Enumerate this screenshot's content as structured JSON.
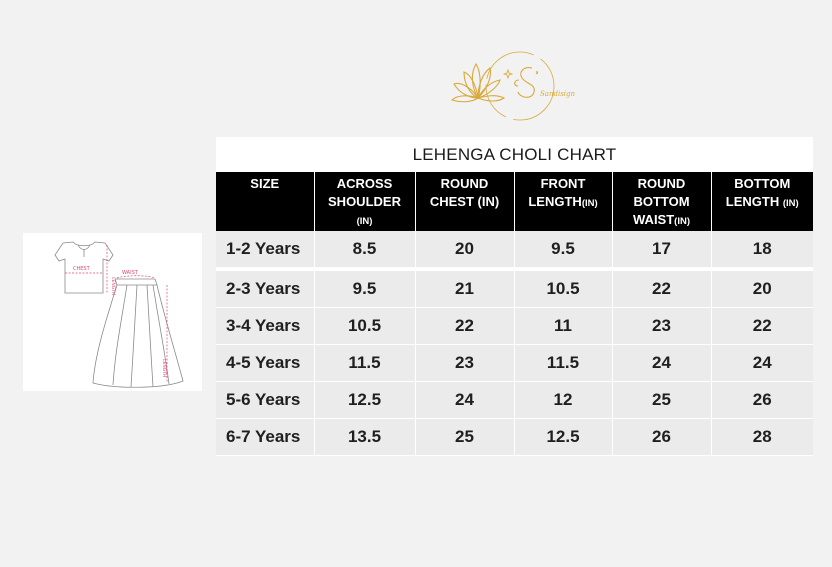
{
  "brand": {
    "logo_text": "Sandisign"
  },
  "diagram": {
    "chest_label": "CHEST",
    "length_label": "LENGTH",
    "waist_label": "WAIST",
    "bottom_length_label": "LENGTH"
  },
  "chart": {
    "title": "LEHENGA CHOLI CHART",
    "columns": [
      {
        "lines": [
          "SIZE"
        ],
        "unit": ""
      },
      {
        "lines": [
          "ACROSS",
          "SHOULDER"
        ],
        "unit": "(IN)"
      },
      {
        "lines": [
          "ROUND",
          "CHEST (IN)"
        ],
        "unit": ""
      },
      {
        "lines": [
          "FRONT",
          "LENGTH"
        ],
        "unit": "(IN)"
      },
      {
        "lines": [
          "ROUND",
          "BOTTOM",
          "WAIST"
        ],
        "unit": "(IN)"
      },
      {
        "lines": [
          "BOTTOM",
          "LENGTH "
        ],
        "unit": "(IN)"
      }
    ],
    "rows": [
      [
        "1-2 Years",
        "8.5",
        "20",
        "9.5",
        "17",
        "18"
      ],
      [
        "2-3 Years",
        "9.5",
        "21",
        "10.5",
        "22",
        "20"
      ],
      [
        "3-4 Years",
        "10.5",
        "22",
        "11",
        "23",
        "22"
      ],
      [
        "4-5 Years",
        "11.5",
        "23",
        "11.5",
        "24",
        "24"
      ],
      [
        "5-6 Years",
        "12.5",
        "24",
        "12",
        "25",
        "26"
      ],
      [
        "6-7 Years",
        "13.5",
        "25",
        "12.5",
        "26",
        "28"
      ]
    ]
  }
}
